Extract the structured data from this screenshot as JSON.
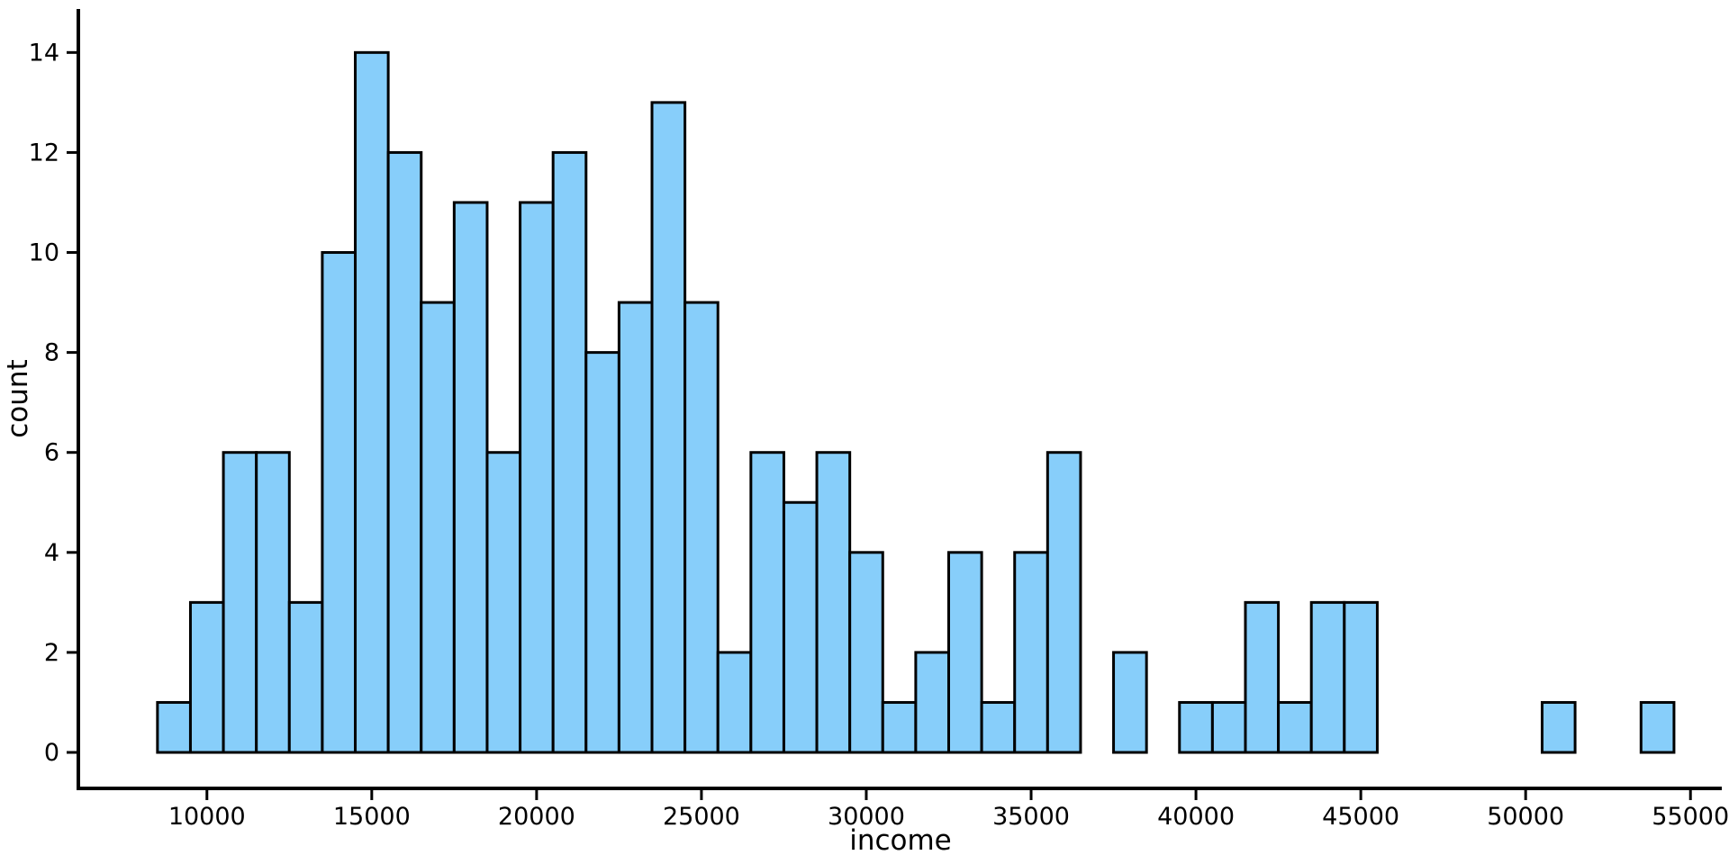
{
  "chart_data": {
    "type": "bar",
    "subtype": "histogram",
    "title": "",
    "xlabel": "income",
    "ylabel": "count",
    "bin_width": 1000,
    "bin_centers": [
      9000,
      10000,
      11000,
      12000,
      13000,
      14000,
      15000,
      16000,
      17000,
      18000,
      19000,
      20000,
      21000,
      22000,
      23000,
      24000,
      25000,
      26000,
      27000,
      28000,
      29000,
      30000,
      31000,
      32000,
      33000,
      34000,
      35000,
      36000,
      37000,
      38000,
      39000,
      40000,
      41000,
      42000,
      43000,
      44000,
      45000,
      46000,
      47000,
      48000,
      49000,
      50000,
      51000,
      52000,
      53000,
      54000
    ],
    "values": [
      1,
      3,
      6,
      6,
      3,
      10,
      14,
      12,
      9,
      11,
      6,
      11,
      12,
      8,
      9,
      13,
      9,
      2,
      6,
      5,
      6,
      4,
      1,
      2,
      4,
      1,
      4,
      6,
      0,
      2,
      0,
      1,
      1,
      3,
      1,
      3,
      3,
      0,
      0,
      0,
      0,
      0,
      1,
      0,
      0,
      1
    ],
    "x_ticks": [
      10000,
      15000,
      20000,
      25000,
      30000,
      35000,
      40000,
      45000,
      50000,
      55000
    ],
    "y_ticks": [
      0,
      2,
      4,
      6,
      8,
      10,
      12,
      14
    ],
    "xlim": [
      6100,
      55950
    ],
    "ylim": [
      -0.72,
      14.87
    ],
    "grid": "off",
    "legend": "none",
    "bar_fill": "#87CEFA",
    "bar_stroke": "#000000",
    "axis_color": "#000000",
    "text_color": "#000000"
  }
}
